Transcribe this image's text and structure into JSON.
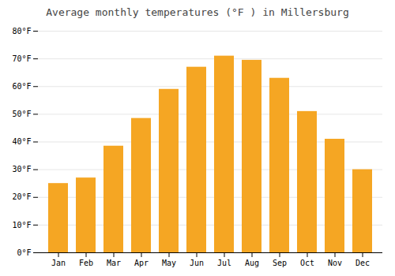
{
  "chart_data": {
    "type": "bar",
    "title": "Average monthly temperatures (°F ) in Millersburg",
    "categories": [
      "Jan",
      "Feb",
      "Mar",
      "Apr",
      "May",
      "Jun",
      "Jul",
      "Aug",
      "Sep",
      "Oct",
      "Nov",
      "Dec"
    ],
    "values": [
      25,
      27,
      38.5,
      48.5,
      59,
      67,
      71,
      69.5,
      63,
      51,
      41,
      30
    ],
    "color": "#F5A623",
    "ylim": [
      0,
      80
    ],
    "yticks": [
      {
        "value": 0,
        "label": "0°F"
      },
      {
        "value": 10,
        "label": "10°F"
      },
      {
        "value": 20,
        "label": "20°F"
      },
      {
        "value": 30,
        "label": "30°F"
      },
      {
        "value": 40,
        "label": "40°F"
      },
      {
        "value": 50,
        "label": "50°F"
      },
      {
        "value": 60,
        "label": "60°F"
      },
      {
        "value": 70,
        "label": "70°F"
      },
      {
        "value": 80,
        "label": "80°F"
      }
    ],
    "grid": true
  }
}
